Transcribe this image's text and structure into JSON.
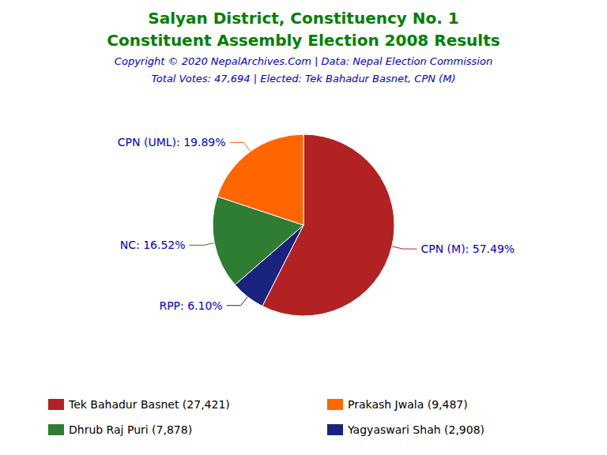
{
  "chart_data": {
    "type": "pie",
    "title": "Salyan District, Constituency No. 1",
    "subtitle": "Constituent Assembly Election 2008 Results",
    "title_color": "#008000",
    "annotations": [
      {
        "text": "Copyright © 2020 NepalArchives.Com | Data: Nepal Election Commission",
        "color": "#0000CD"
      },
      {
        "text": "Total Votes: 47,694 | Elected: Tek Bahadur Basnet, CPN (M)",
        "color": "#0000CD"
      }
    ],
    "categories": [
      "CPN (M)",
      "RPP",
      "NC",
      "CPN (UML)"
    ],
    "values": [
      57.49,
      6.1,
      16.52,
      19.89
    ],
    "value_labels": [
      "CPN (M): 57.49%",
      "RPP: 6.10%",
      "NC: 16.52%",
      "CPN (UML): 19.89%"
    ],
    "data_labels": true,
    "label_color": "#0000CD",
    "colors": [
      "#B22222",
      "#1A237E",
      "#2E7D32",
      "#FF6600"
    ],
    "legend": "bottom",
    "legend_entries": [
      {
        "category": "CPN (M)",
        "value": 27421,
        "label": "Tek Bahadur Basnet (27,421)"
      },
      {
        "category": "CPN (UML)",
        "value": 9487,
        "label": "Prakash Jwala (9,487)"
      },
      {
        "category": "NC",
        "value": 7878,
        "label": "Dhrub Raj Puri (7,878)"
      },
      {
        "category": "RPP",
        "value": 2908,
        "label": "Yagyaswari Shah (2,908)"
      }
    ]
  }
}
